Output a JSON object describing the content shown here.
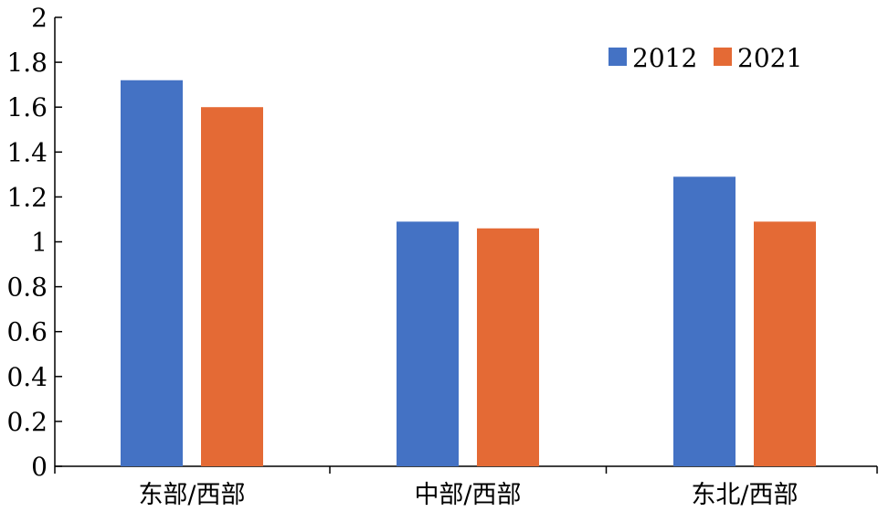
{
  "chart_data": {
    "type": "bar",
    "title": "",
    "xlabel": "",
    "ylabel": "",
    "categories": [
      "东部/西部",
      "中部/西部",
      "东北/西部"
    ],
    "series": [
      {
        "name": "2012",
        "color": "#4472C4",
        "values": [
          1.72,
          1.09,
          1.29
        ]
      },
      {
        "name": "2021",
        "color": "#E46A35",
        "values": [
          1.6,
          1.06,
          1.09
        ]
      }
    ],
    "ylim": [
      0,
      2
    ],
    "yticks": [
      0,
      0.2,
      0.4,
      0.6,
      0.8,
      1,
      1.2,
      1.4,
      1.6,
      1.8,
      2
    ],
    "ytick_labels": [
      "0",
      "0.2",
      "0.4",
      "0.6",
      "0.8",
      "1",
      "1.2",
      "1.4",
      "1.6",
      "1.8",
      "2"
    ],
    "grid": false,
    "legend_position": "top-right"
  }
}
